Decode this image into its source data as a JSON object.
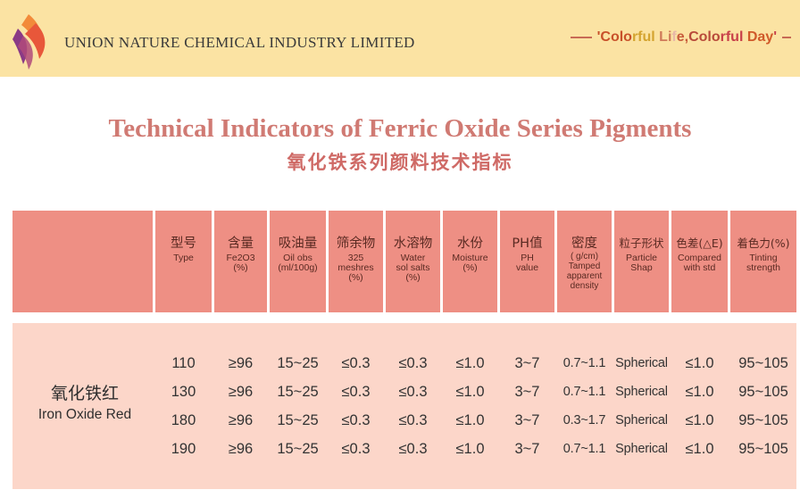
{
  "header": {
    "company": "UNION NATURE CHEMICAL INDUSTRY LIMITED",
    "slogan_parts": [
      {
        "text": "'",
        "color": "#c8512a"
      },
      {
        "text": "Colo",
        "color": "#c8512a"
      },
      {
        "text": "rful ",
        "color": "#d4a430"
      },
      {
        "text": "Li",
        "color": "#cf7a5a"
      },
      {
        "text": "f",
        "color": "#e8b8a8"
      },
      {
        "text": "e,",
        "color": "#c75a3a"
      },
      {
        "text": "Colo",
        "color": "#b84a3a"
      },
      {
        "text": "rful ",
        "color": "#c8404a"
      },
      {
        "text": "Day",
        "color": "#d05a2a"
      },
      {
        "text": "'",
        "color": "#c8404a"
      }
    ]
  },
  "title": {
    "en": "Technical Indicators of Ferric Oxide Series Pigments",
    "cn": "氧化铁系列颜料技术指标"
  },
  "columns": [
    {
      "cn": "型号",
      "en": "Type"
    },
    {
      "cn": "含量",
      "en": "Fe2O3\n(%)"
    },
    {
      "cn": "吸油量",
      "en": "Oil obs\n(ml/100g)"
    },
    {
      "cn": "筛余物",
      "en": "325\nmeshres\n(%)"
    },
    {
      "cn": "水溶物",
      "en": "Water\nsol salts\n(%)"
    },
    {
      "cn": "水份",
      "en": "Moisture\n(%)"
    },
    {
      "cn": "PH值",
      "en": "PH\nvalue"
    },
    {
      "cn": "密度",
      "en": "( g/cm)\nTamped\napparent\ndensity"
    },
    {
      "cn": "粒子形状",
      "en": "Particle\nShap"
    },
    {
      "cn": "色差(△E)",
      "en": "Compared\nwith std"
    },
    {
      "cn": "着色力(%)",
      "en": "Tinting\nstrength"
    }
  ],
  "product": {
    "name_cn": "氧化铁红",
    "name_en": "Iron  Oxide Red"
  },
  "rows": [
    [
      "110",
      "≥96",
      "15~25",
      "≤0.3",
      "≤0.3",
      "≤1.0",
      "3~7",
      "0.7~1.1",
      "Spherical",
      "≤1.0",
      "95~105"
    ],
    [
      "130",
      "≥96",
      "15~25",
      "≤0.3",
      "≤0.3",
      "≤1.0",
      "3~7",
      "0.7~1.1",
      "Spherical",
      "≤1.0",
      "95~105"
    ],
    [
      "180",
      "≥96",
      "15~25",
      "≤0.3",
      "≤0.3",
      "≤1.0",
      "3~7",
      "0.3~1.7",
      "Spherical",
      "≤1.0",
      "95~105"
    ],
    [
      "190",
      "≥96",
      "15~25",
      "≤0.3",
      "≤0.3",
      "≤1.0",
      "3~7",
      "0.7~1.1",
      "Spherical",
      "≤1.0",
      "95~105"
    ]
  ],
  "colors": {
    "top_band": "#fbe3a3",
    "header_cell": "#ee8f84",
    "body_bg": "#fcd6c9",
    "title": "#d07a73"
  }
}
